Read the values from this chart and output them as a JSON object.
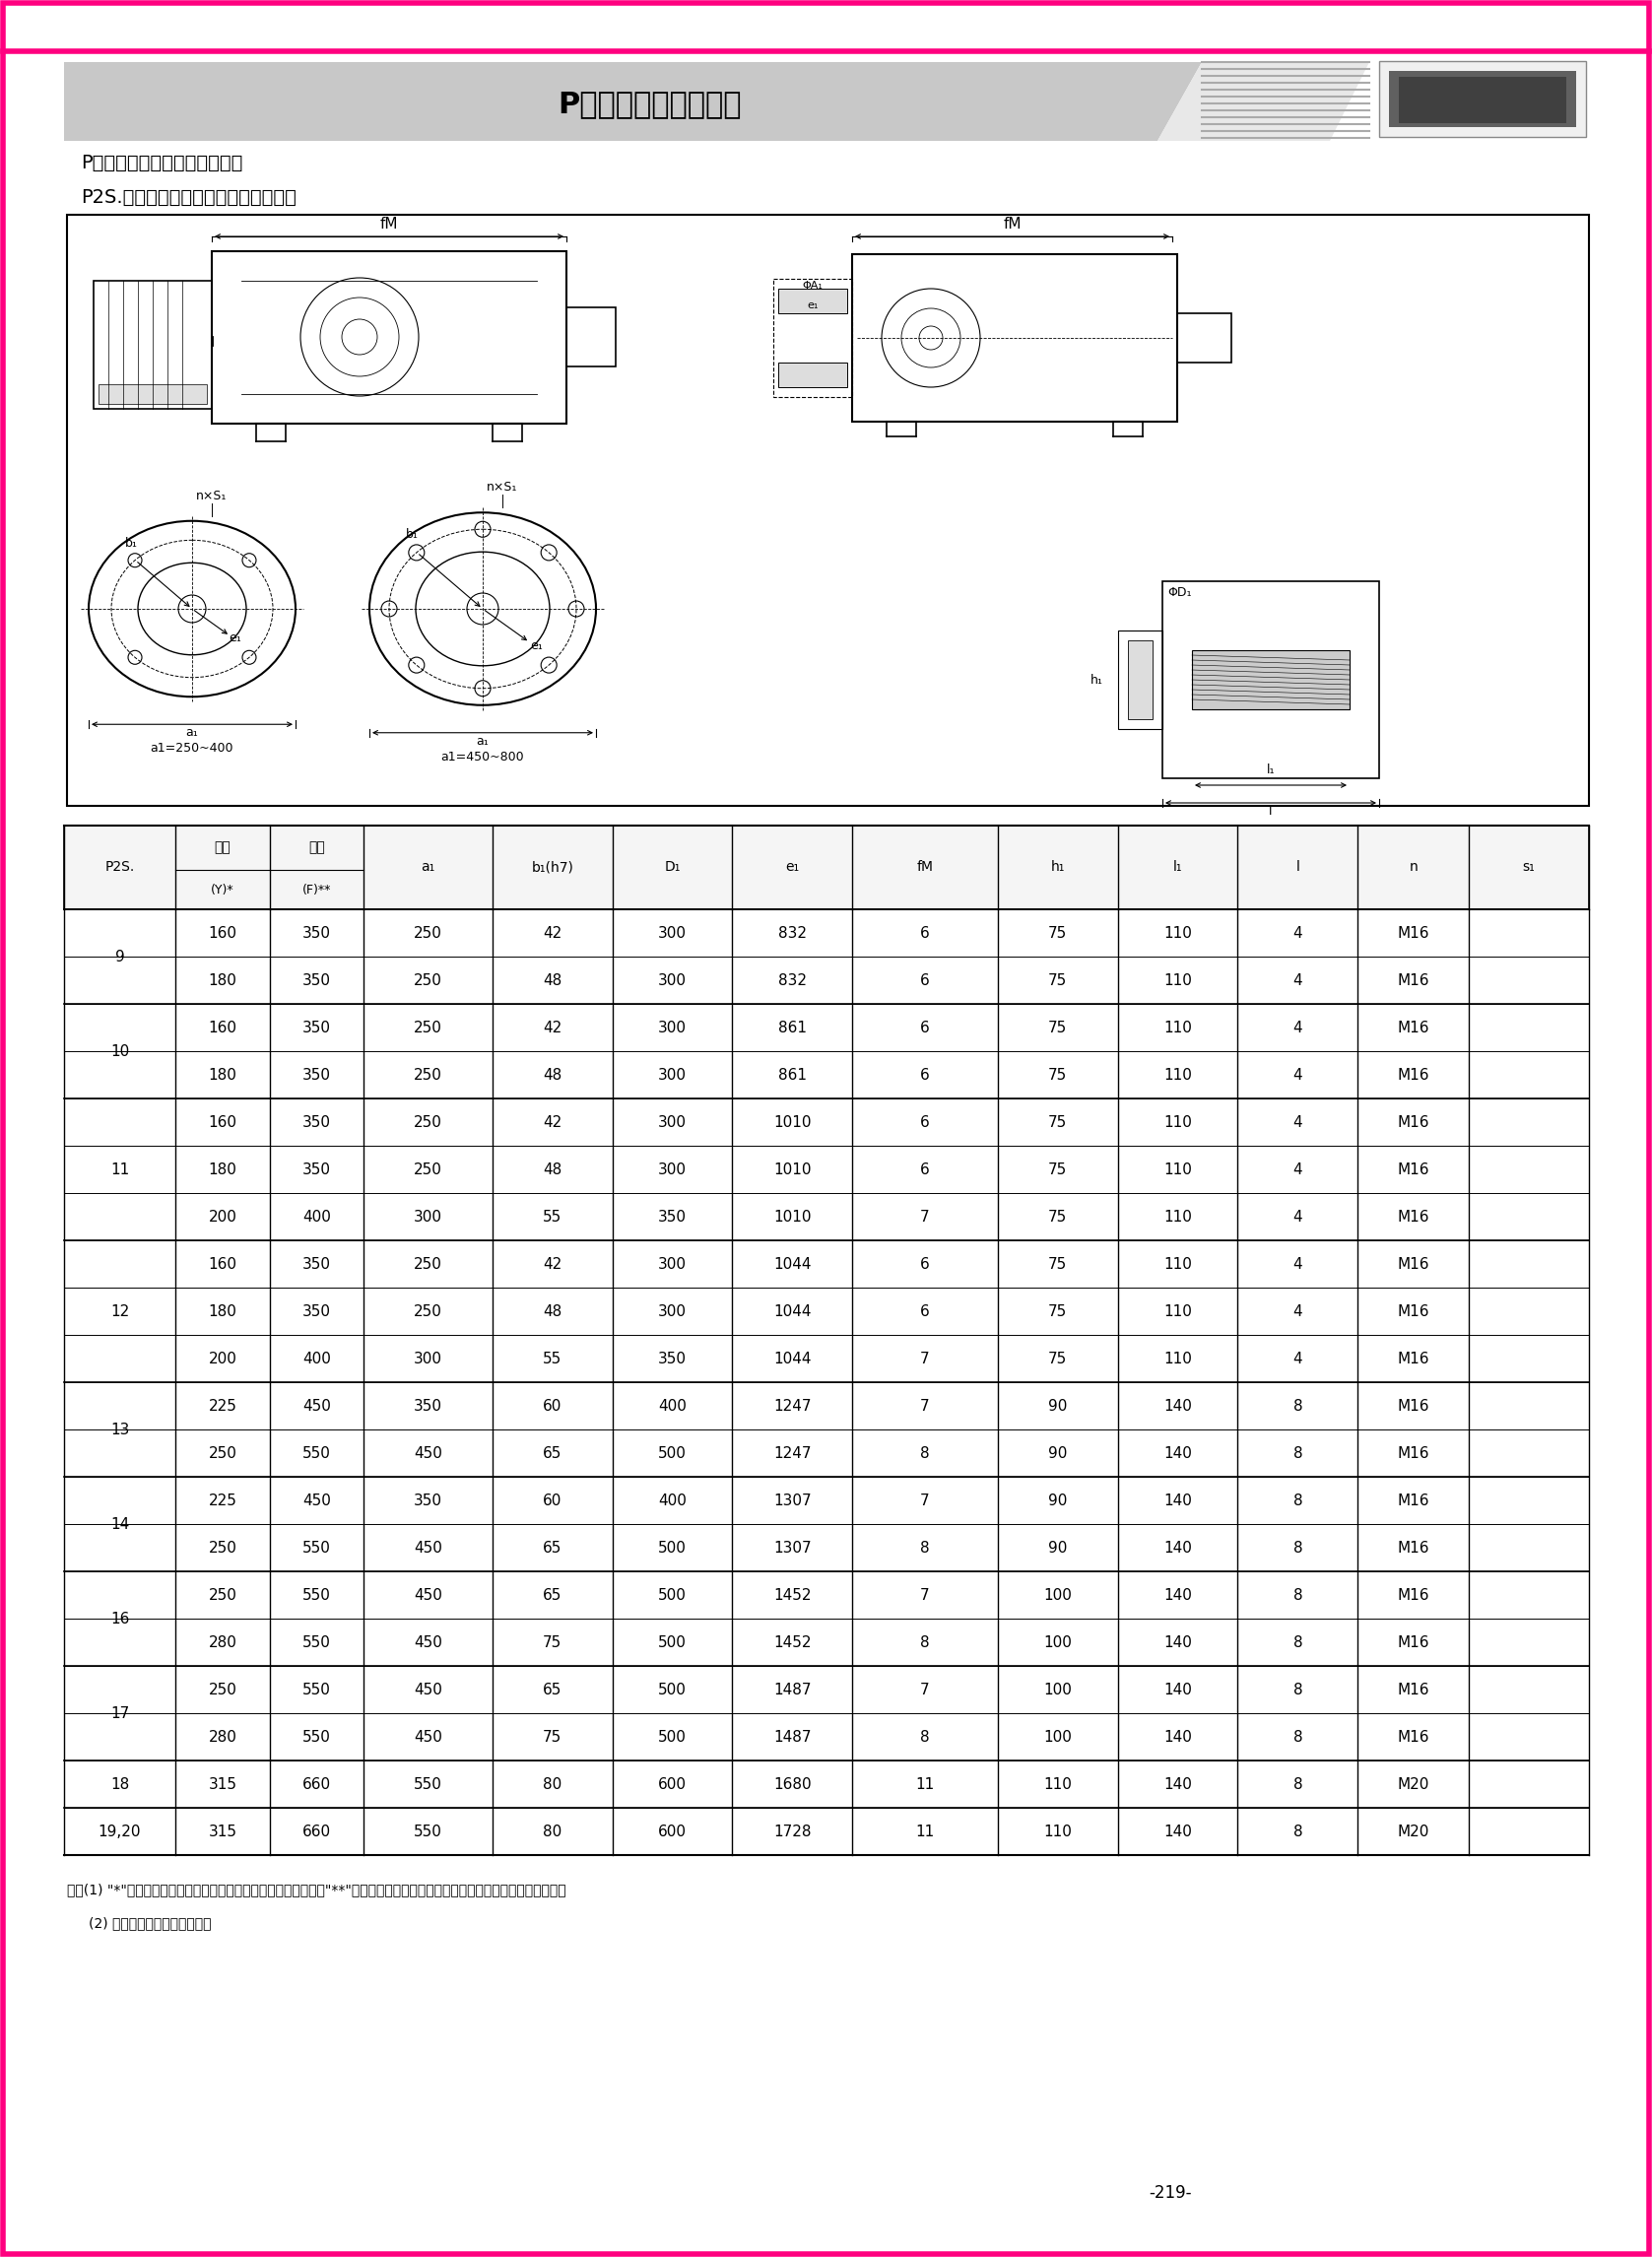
{
  "title": "P系列行星齒輪減速器",
  "subtitle1": "P系列減速機帶電機法蘭輸入：",
  "subtitle2": "P2S.帶電機、輸入法蘭及聯軸器尺寸：",
  "page_number": "-219-",
  "note1": "注：(1) \"*\"所選直聯電機機座號所對應的功率應滿足傳動能力表；\"**\"表格中所示的法蘭為標準型號的法蘭，如有異同請另咨詢。",
  "note2": "(2) 側面扭力臂組合，請咨詢。",
  "table_data": [
    [
      "9",
      "160",
      "350",
      "250",
      "42",
      "300",
      "832",
      "6",
      "75",
      "110",
      "4",
      "M16"
    ],
    [
      "9",
      "180",
      "350",
      "250",
      "48",
      "300",
      "832",
      "6",
      "75",
      "110",
      "4",
      "M16"
    ],
    [
      "10",
      "160",
      "350",
      "250",
      "42",
      "300",
      "861",
      "6",
      "75",
      "110",
      "4",
      "M16"
    ],
    [
      "10",
      "180",
      "350",
      "250",
      "48",
      "300",
      "861",
      "6",
      "75",
      "110",
      "4",
      "M16"
    ],
    [
      "11",
      "160",
      "350",
      "250",
      "42",
      "300",
      "1010",
      "6",
      "75",
      "110",
      "4",
      "M16"
    ],
    [
      "11",
      "180",
      "350",
      "250",
      "48",
      "300",
      "1010",
      "6",
      "75",
      "110",
      "4",
      "M16"
    ],
    [
      "11",
      "200",
      "400",
      "300",
      "55",
      "350",
      "1010",
      "7",
      "75",
      "110",
      "4",
      "M16"
    ],
    [
      "12",
      "160",
      "350",
      "250",
      "42",
      "300",
      "1044",
      "6",
      "75",
      "110",
      "4",
      "M16"
    ],
    [
      "12",
      "180",
      "350",
      "250",
      "48",
      "300",
      "1044",
      "6",
      "75",
      "110",
      "4",
      "M16"
    ],
    [
      "12",
      "200",
      "400",
      "300",
      "55",
      "350",
      "1044",
      "7",
      "75",
      "110",
      "4",
      "M16"
    ],
    [
      "13",
      "225",
      "450",
      "350",
      "60",
      "400",
      "1247",
      "7",
      "90",
      "140",
      "8",
      "M16"
    ],
    [
      "13",
      "250",
      "550",
      "450",
      "65",
      "500",
      "1247",
      "8",
      "90",
      "140",
      "8",
      "M16"
    ],
    [
      "14",
      "225",
      "450",
      "350",
      "60",
      "400",
      "1307",
      "7",
      "90",
      "140",
      "8",
      "M16"
    ],
    [
      "14",
      "250",
      "550",
      "450",
      "65",
      "500",
      "1307",
      "8",
      "90",
      "140",
      "8",
      "M16"
    ],
    [
      "16",
      "250",
      "550",
      "450",
      "65",
      "500",
      "1452",
      "7",
      "100",
      "140",
      "8",
      "M16"
    ],
    [
      "16",
      "280",
      "550",
      "450",
      "75",
      "500",
      "1452",
      "8",
      "100",
      "140",
      "8",
      "M16"
    ],
    [
      "17",
      "250",
      "550",
      "450",
      "65",
      "500",
      "1487",
      "7",
      "100",
      "140",
      "8",
      "M16"
    ],
    [
      "17",
      "280",
      "550",
      "450",
      "75",
      "500",
      "1487",
      "8",
      "100",
      "140",
      "8",
      "M16"
    ],
    [
      "18",
      "315",
      "660",
      "550",
      "80",
      "600",
      "1680",
      "11",
      "110",
      "140",
      "8",
      "M20"
    ],
    [
      "19,20",
      "315",
      "660",
      "550",
      "80",
      "600",
      "1728",
      "11",
      "110",
      "140",
      "8",
      "M20"
    ]
  ],
  "pink_line_color": "#FF007F",
  "gray_color": "#cccccc",
  "bg_color": "#ffffff"
}
